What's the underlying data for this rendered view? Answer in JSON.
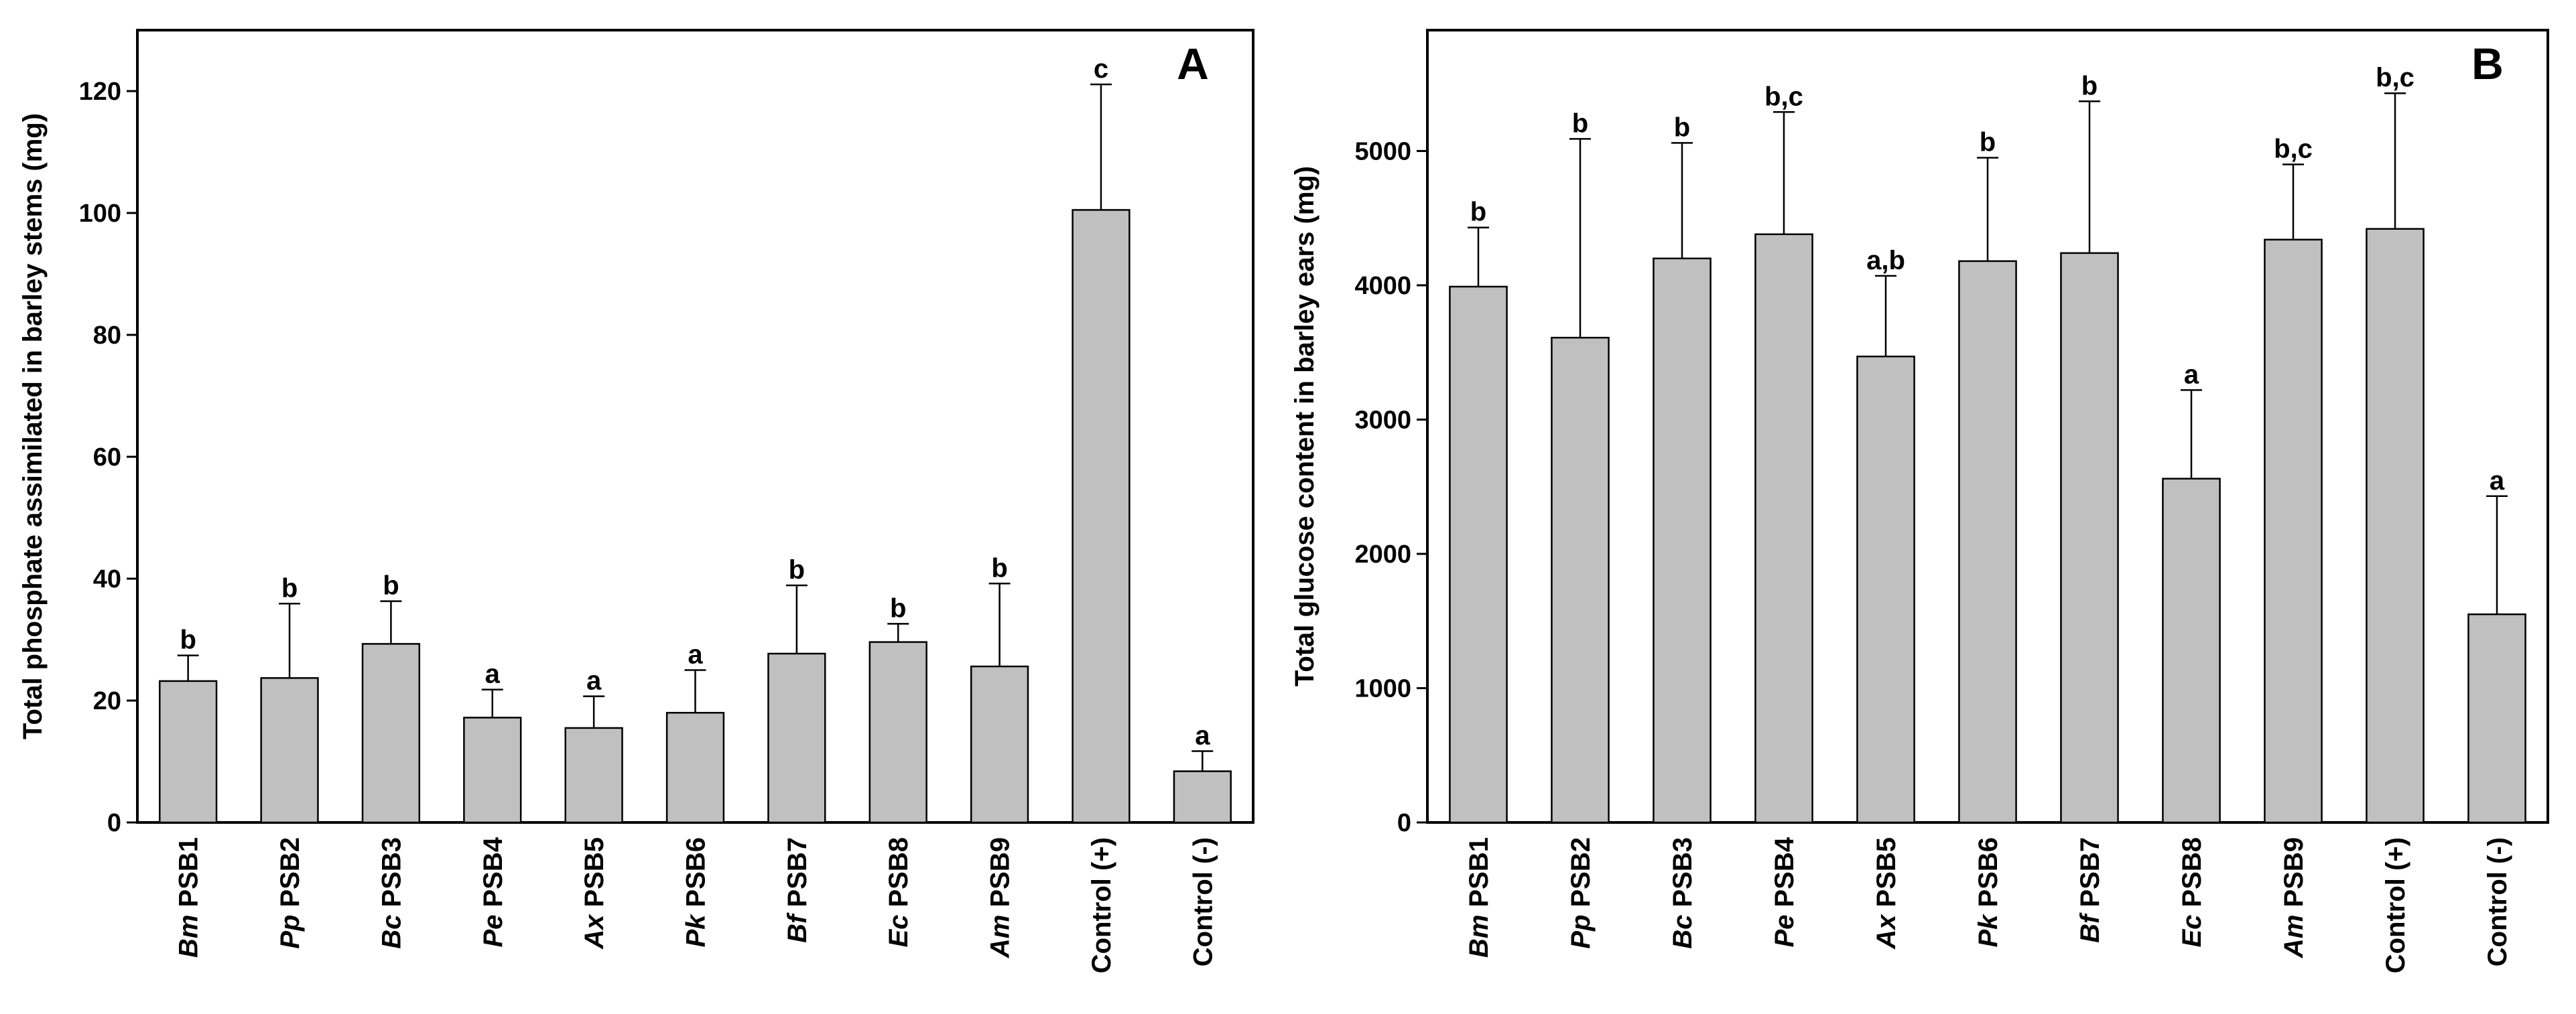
{
  "chart_data": [
    {
      "type": "bar",
      "panel": "A",
      "ylabel": "Total phosphate assimilated in barley stems (mg)",
      "ylim": [
        0,
        130
      ],
      "yticks": [
        0,
        20,
        40,
        60,
        80,
        100,
        120
      ],
      "categories": [
        {
          "italic": "Bm",
          "rest": " PSB1"
        },
        {
          "italic": "Pp",
          "rest": " PSB2"
        },
        {
          "italic": "Bc",
          "rest": " PSB3"
        },
        {
          "italic": "Pe",
          "rest": " PSB4"
        },
        {
          "italic": "Ax",
          "rest": " PSB5"
        },
        {
          "italic": "Pk",
          "rest": " PSB6"
        },
        {
          "italic": "Bf",
          "rest": " PSB7"
        },
        {
          "italic": "Ec",
          "rest": " PSB8"
        },
        {
          "italic": "Am",
          "rest": " PSB9"
        },
        {
          "italic": "",
          "rest": "Control (+)"
        },
        {
          "italic": "",
          "rest": "Control (-)"
        }
      ],
      "values": [
        23.2,
        23.7,
        29.3,
        17.2,
        15.5,
        18.0,
        27.7,
        29.6,
        25.6,
        100.5,
        8.4
      ],
      "errors": [
        4.2,
        12.2,
        7.0,
        4.6,
        5.2,
        7.0,
        11.2,
        3.0,
        13.6,
        20.6,
        3.3
      ],
      "significance": [
        "b",
        "b",
        "b",
        "a",
        "a",
        "a",
        "b",
        "b",
        "b",
        "c",
        "a"
      ]
    },
    {
      "type": "bar",
      "panel": "B",
      "ylabel": "Total glucose content in barley ears (mg)",
      "ylim": [
        0,
        5900
      ],
      "yticks": [
        0,
        1000,
        2000,
        3000,
        4000,
        5000
      ],
      "categories": [
        {
          "italic": "Bm",
          "rest": " PSB1"
        },
        {
          "italic": "Pp",
          "rest": " PSB2"
        },
        {
          "italic": "Bc",
          "rest": " PSB3"
        },
        {
          "italic": "Pe",
          "rest": " PSB4"
        },
        {
          "italic": "Ax",
          "rest": " PSB5"
        },
        {
          "italic": "Pk",
          "rest": " PSB6"
        },
        {
          "italic": "Bf",
          "rest": " PSB7"
        },
        {
          "italic": "Ec",
          "rest": " PSB8"
        },
        {
          "italic": "Am",
          "rest": " PSB9"
        },
        {
          "italic": "",
          "rest": "Control (+)"
        },
        {
          "italic": "",
          "rest": "Control (-)"
        }
      ],
      "values": [
        3990,
        3610,
        4200,
        4380,
        3470,
        4180,
        4240,
        2560,
        4340,
        4420,
        1550
      ],
      "errors": [
        440,
        1480,
        860,
        910,
        600,
        770,
        1130,
        660,
        560,
        1010,
        880
      ],
      "significance": [
        "b",
        "b",
        "b",
        "b,c",
        "a,b",
        "b",
        "b",
        "a",
        "b,c",
        "b,c",
        "a"
      ]
    }
  ]
}
